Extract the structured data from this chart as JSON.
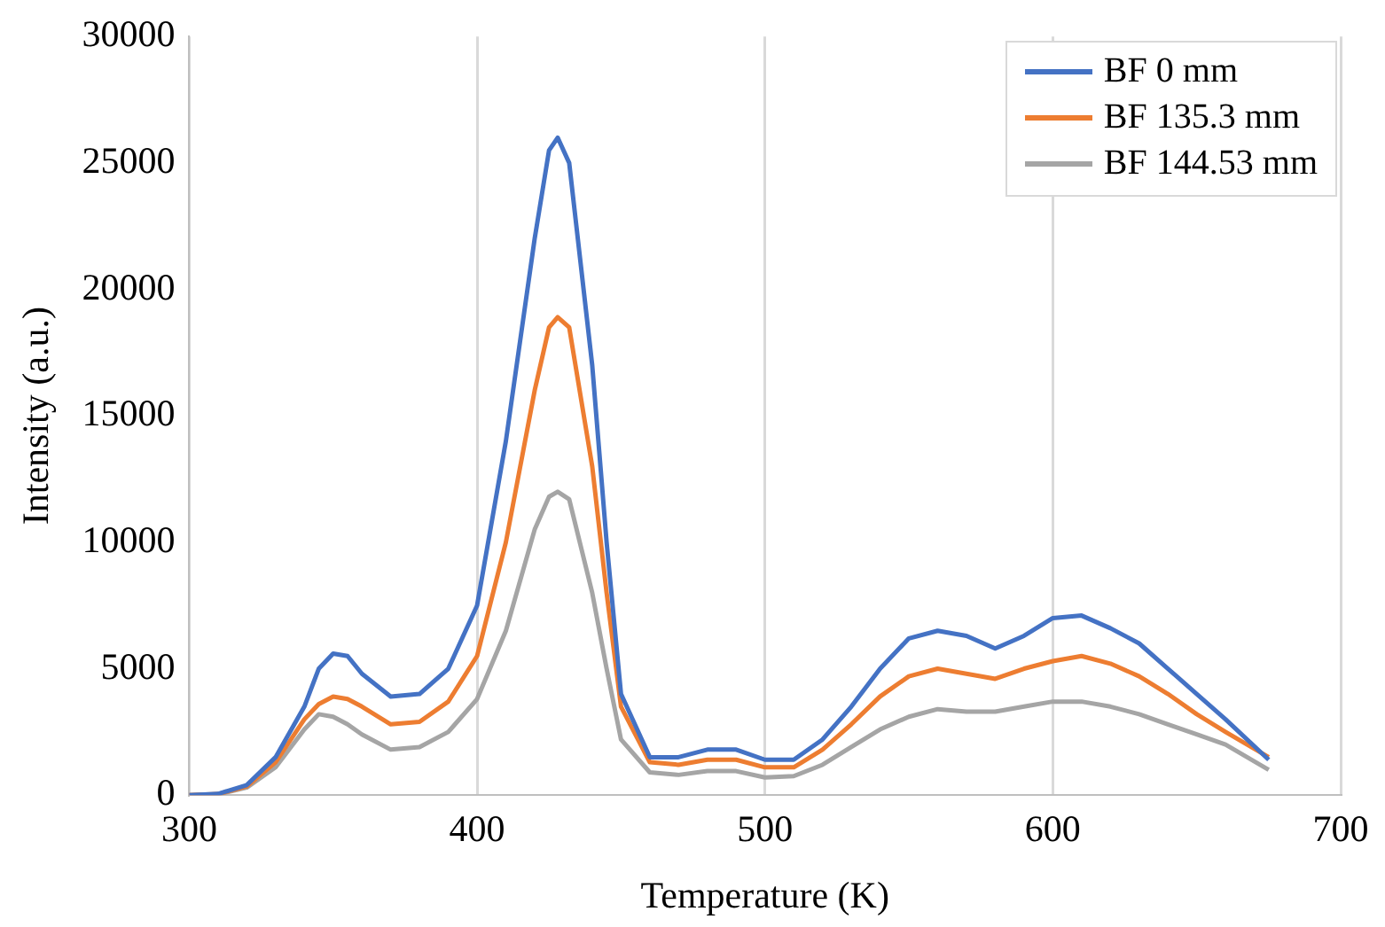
{
  "chart_data": {
    "type": "line",
    "xlabel": "Temperature (K)",
    "ylabel": "Intensity (a.u.)",
    "xlim": [
      300,
      700
    ],
    "xticks": [
      300,
      400,
      500,
      600,
      700
    ],
    "ylim": [
      0,
      30000
    ],
    "yticks": [
      0,
      5000,
      10000,
      15000,
      20000,
      25000,
      30000
    ],
    "grid": "x",
    "legend": "top right",
    "marker": "none",
    "line_style": "solid",
    "x": [
      300,
      310,
      320,
      330,
      340,
      345,
      350,
      355,
      360,
      370,
      380,
      390,
      400,
      410,
      420,
      425,
      428,
      432,
      440,
      445,
      450,
      460,
      470,
      480,
      490,
      500,
      510,
      520,
      530,
      540,
      550,
      560,
      570,
      580,
      590,
      600,
      610,
      620,
      630,
      640,
      650,
      660,
      675
    ],
    "series": [
      {
        "name": "BF 0 mm",
        "color": "#4472c4",
        "values": [
          0,
          50,
          400,
          1500,
          3500,
          5000,
          5600,
          5500,
          4800,
          3900,
          4000,
          5000,
          7500,
          14000,
          22000,
          25500,
          26000,
          25000,
          17000,
          10000,
          4000,
          1500,
          1500,
          1800,
          1800,
          1400,
          1400,
          2200,
          3500,
          5000,
          6200,
          6500,
          6300,
          5800,
          6300,
          7000,
          7100,
          6600,
          6000,
          5000,
          4000,
          3000,
          1400
        ]
      },
      {
        "name": "BF 135.3 mm",
        "color": "#ed7d31",
        "values": [
          0,
          40,
          350,
          1300,
          3000,
          3600,
          3900,
          3800,
          3500,
          2800,
          2900,
          3700,
          5500,
          10000,
          16000,
          18500,
          18900,
          18500,
          13000,
          8000,
          3500,
          1300,
          1200,
          1400,
          1400,
          1100,
          1100,
          1800,
          2800,
          3900,
          4700,
          5000,
          4800,
          4600,
          5000,
          5300,
          5500,
          5200,
          4700,
          4000,
          3200,
          2500,
          1500
        ]
      },
      {
        "name": "BF 144.53 mm",
        "color": "#a5a5a5",
        "values": [
          0,
          30,
          300,
          1100,
          2600,
          3200,
          3100,
          2800,
          2400,
          1800,
          1900,
          2500,
          3800,
          6500,
          10500,
          11800,
          12000,
          11700,
          8000,
          5000,
          2200,
          900,
          800,
          950,
          950,
          700,
          750,
          1200,
          1900,
          2600,
          3100,
          3400,
          3300,
          3300,
          3500,
          3700,
          3700,
          3500,
          3200,
          2800,
          2400,
          2000,
          1000
        ]
      }
    ]
  }
}
